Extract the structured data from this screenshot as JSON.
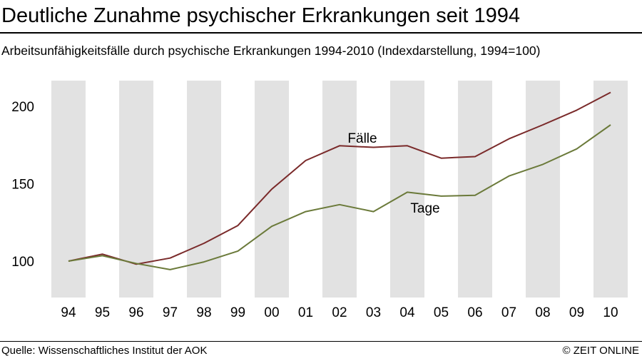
{
  "header": {
    "title": "Deutliche Zunahme psychischer Erkrankungen seit 1994",
    "subtitle": "Arbeitsunfähigkeitsfälle durch psychische Erkrankungen 1994-2010 (Indexdarstellung, 1994=100)"
  },
  "footer": {
    "source": "Quelle: Wissenschaftliches Institut der AOK",
    "credit": "© ZEIT ONLINE"
  },
  "chart_data": {
    "type": "line",
    "title": "Deutliche Zunahme psychischer Erkrankungen seit 1994",
    "subtitle": "Arbeitsunfähigkeitsfälle durch psychische Erkrankungen 1994-2010 (Indexdarstellung, 1994=100)",
    "xlabel": "",
    "ylabel": "",
    "categories": [
      "94",
      "95",
      "96",
      "97",
      "98",
      "99",
      "00",
      "01",
      "02",
      "03",
      "04",
      "05",
      "06",
      "07",
      "08",
      "09",
      "10"
    ],
    "yticks": [
      100,
      150,
      200
    ],
    "ylim": [
      80,
      217
    ],
    "grid": false,
    "alternating_bands": true,
    "band_color": "#e2e2e2",
    "series": [
      {
        "name": "Fälle",
        "color": "#7a2a2a",
        "values": [
          100,
          104.5,
          98,
          102,
          111.5,
          123,
          146.5,
          165,
          174.5,
          173.5,
          174.5,
          166.5,
          167.5,
          179,
          188,
          197.5,
          209
        ]
      },
      {
        "name": "Tage",
        "color": "#6b7a3a",
        "values": [
          100,
          103.5,
          98.5,
          94.5,
          99.5,
          106.5,
          122.5,
          132,
          136.5,
          132,
          144.5,
          142,
          142.5,
          155,
          162.5,
          172.5,
          188
        ]
      }
    ]
  }
}
